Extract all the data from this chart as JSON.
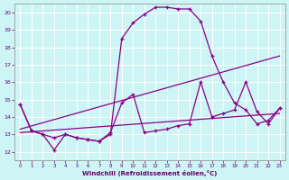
{
  "xlabel": "Windchill (Refroidissement éolien,°C)",
  "background_color": "#cceeff",
  "grid_color": "#aadddd",
  "line_color": "#880088",
  "xlim": [
    -0.5,
    23.5
  ],
  "ylim": [
    11.5,
    20.5
  ],
  "yticks": [
    12,
    13,
    14,
    15,
    16,
    17,
    18,
    19,
    20
  ],
  "xticks": [
    0,
    1,
    2,
    3,
    4,
    5,
    6,
    7,
    8,
    9,
    10,
    11,
    12,
    13,
    14,
    15,
    16,
    17,
    18,
    19,
    20,
    21,
    22,
    23
  ],
  "line1_x": [
    0,
    1,
    2,
    3,
    4,
    5,
    6,
    7,
    8,
    9,
    10,
    11,
    12,
    13,
    14,
    15,
    16,
    17,
    18,
    19,
    20,
    21,
    22,
    23
  ],
  "line1_y": [
    14.7,
    13.2,
    13.0,
    12.8,
    13.0,
    12.8,
    12.7,
    12.6,
    13.0,
    18.5,
    19.4,
    19.9,
    20.3,
    20.3,
    20.2,
    20.2,
    19.5,
    17.5,
    16.0,
    14.8,
    14.4,
    13.6,
    13.8,
    14.5
  ],
  "line2_x": [
    0,
    1,
    2,
    3,
    4,
    5,
    6,
    7,
    8,
    9,
    10,
    11,
    12,
    13,
    14,
    15,
    16,
    17,
    18,
    19,
    20,
    21,
    22,
    23
  ],
  "line2_y": [
    14.7,
    13.2,
    13.0,
    12.1,
    13.0,
    12.8,
    12.7,
    12.6,
    13.1,
    14.8,
    15.3,
    13.1,
    13.2,
    13.3,
    13.5,
    13.6,
    16.0,
    14.0,
    14.2,
    14.4,
    16.0,
    14.3,
    13.6,
    14.5
  ],
  "line3_x": [
    0,
    23
  ],
  "line3_y": [
    13.1,
    14.2
  ],
  "line4_x": [
    0,
    23
  ],
  "line4_y": [
    13.3,
    17.5
  ]
}
